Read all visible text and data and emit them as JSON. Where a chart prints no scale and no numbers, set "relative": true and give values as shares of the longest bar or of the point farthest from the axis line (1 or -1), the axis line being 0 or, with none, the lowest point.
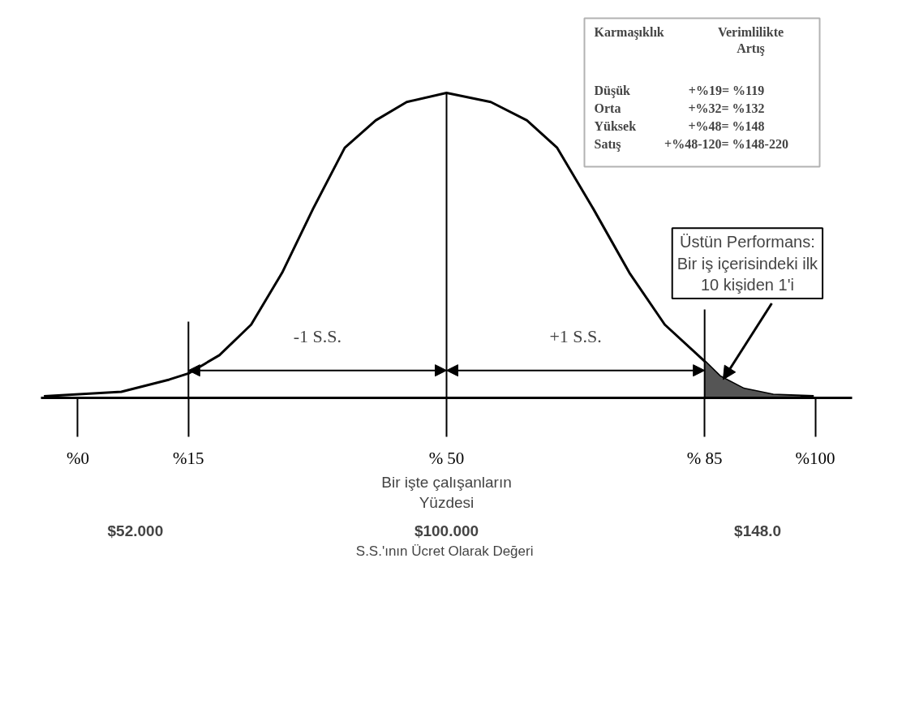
{
  "chart_data": {
    "type": "line",
    "relative": true,
    "xlabel": "Bir işte çalışanların\nYüzdesi",
    "x2label": "S.S.'ının  Ücret Olarak Değeri",
    "xlim": [
      -5,
      105
    ],
    "xticks": [
      {
        "value": 0,
        "label": "%0"
      },
      {
        "value": 15,
        "label": "%15"
      },
      {
        "value": 50,
        "label": "% 50"
      },
      {
        "value": 85,
        "label": "% 85"
      },
      {
        "value": 100,
        "label": "%100"
      }
    ],
    "x2lim": [
      37.44,
      162.56
    ],
    "x2ticks": [
      {
        "value": 52,
        "label": "$52.000"
      },
      {
        "value": 100,
        "label": "$100.000"
      },
      {
        "value": 148,
        "label": "$148.0"
      }
    ],
    "series": [
      {
        "color": "#000000",
        "x": [
          -4.6,
          5.9,
          12.4,
          15,
          19.2,
          23.5,
          27.7,
          31.9,
          36.2,
          40.4,
          44.6,
          50,
          56.0,
          60.9,
          65.0,
          69.9,
          74.8,
          79.6,
          85,
          87.1,
          90.3,
          94.3,
          99.8
        ],
        "values": [
          0.005,
          0.02,
          0.06,
          0.08,
          0.14,
          0.24,
          0.41,
          0.62,
          0.82,
          0.91,
          0.97,
          1,
          0.97,
          0.91,
          0.82,
          0.62,
          0.41,
          0.24,
          0.12,
          0.07,
          0.03,
          0.01,
          0.005
        ]
      },
      {
        "type": "area",
        "color": "#555555",
        "x": [
          85,
          87.1,
          90.3,
          94.3,
          98
        ],
        "values": [
          0.12,
          0.07,
          0.03,
          0.01,
          0.005
        ]
      }
    ],
    "ref_lines": [
      {
        "axis": "x",
        "value": 15
      },
      {
        "axis": "x",
        "value": 50
      },
      {
        "axis": "x",
        "value": 85
      }
    ],
    "annotations": [
      "-1 S.S.",
      "+1 S.S.",
      {
        "text": "Üstün Performans:\nBir iş içerisindeki ilk\n10 kişiden 1'i",
        "x": 87.5,
        "y": 0.06
      },
      "Karmaşıklık",
      "Verimlilikte\nArtış",
      "Düşük",
      "+%19= %119",
      "Orta",
      "+%32= %132",
      "Yüksek",
      "+%48= %148",
      "Satış",
      "+%48-120= %148-220"
    ],
    "grid": false
  }
}
